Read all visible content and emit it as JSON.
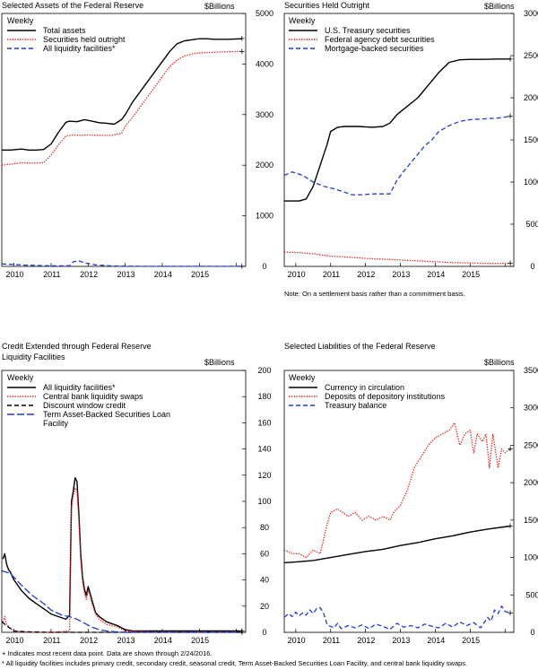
{
  "footnotes": {
    "plus_note": "+ Indicates most recent data point. Data are shown through 2/24/2016.",
    "star_note": "* All liquidity facilities includes primary credit, secondary credit, seasonal credit, Term Asset-Backed Securities Loan Facility, and central bank liquidity swaps."
  },
  "chart_data": [
    {
      "type": "line",
      "title": "Selected Assets of the Federal Reserve",
      "unit_label": "$Billions",
      "legend_title": "Weekly",
      "ylim": [
        0,
        5000
      ],
      "yticks": [
        0,
        1000,
        2000,
        3000,
        4000,
        5000
      ],
      "xlim": [
        2009.67,
        2016.25
      ],
      "xticks": [
        "2010",
        "2011",
        "2012",
        "2013",
        "2014",
        "2015"
      ],
      "series": [
        {
          "name": "Total assets",
          "color": "#000000",
          "style": "solid",
          "x": [
            2009.67,
            2009.9,
            2010.2,
            2010.4,
            2010.6,
            2010.8,
            2011.0,
            2011.2,
            2011.4,
            2011.5,
            2011.7,
            2011.9,
            2012.1,
            2012.3,
            2012.5,
            2012.7,
            2012.9,
            2013.0,
            2013.2,
            2013.4,
            2013.6,
            2013.8,
            2014.0,
            2014.2,
            2014.4,
            2014.6,
            2014.8,
            2015.0,
            2015.2,
            2015.4,
            2015.6,
            2015.8,
            2016.15
          ],
          "y": [
            2300,
            2300,
            2320,
            2300,
            2300,
            2310,
            2420,
            2650,
            2850,
            2870,
            2860,
            2900,
            2870,
            2840,
            2830,
            2810,
            2900,
            3000,
            3250,
            3450,
            3650,
            3850,
            4050,
            4250,
            4400,
            4460,
            4480,
            4500,
            4500,
            4490,
            4490,
            4490,
            4500
          ]
        },
        {
          "name": "Securities held outright",
          "color": "#e8251f",
          "style": "dotted",
          "x": [
            2009.67,
            2009.9,
            2010.2,
            2010.5,
            2010.8,
            2011.0,
            2011.2,
            2011.4,
            2011.6,
            2011.8,
            2012.0,
            2012.3,
            2012.6,
            2012.9,
            2013.0,
            2013.2,
            2013.4,
            2013.6,
            2013.8,
            2014.0,
            2014.2,
            2014.4,
            2014.6,
            2014.8,
            2015.0,
            2015.3,
            2015.6,
            2016.15
          ],
          "y": [
            2000,
            2020,
            2050,
            2040,
            2050,
            2200,
            2400,
            2580,
            2600,
            2590,
            2600,
            2590,
            2590,
            2630,
            2770,
            2950,
            3150,
            3350,
            3550,
            3750,
            3950,
            4080,
            4160,
            4200,
            4220,
            4230,
            4240,
            4250
          ]
        },
        {
          "name": "All liquidity facilities*",
          "color": "#1f3ad6",
          "style": "dashed",
          "x": [
            2009.67,
            2009.9,
            2010.3,
            2010.8,
            2011.2,
            2011.5,
            2011.6,
            2011.75,
            2011.9,
            2012.2,
            2012.6,
            2013.0,
            2014.0,
            2015.0,
            2016.15
          ],
          "y": [
            50,
            40,
            25,
            15,
            10,
            12,
            90,
            110,
            70,
            30,
            10,
            3,
            1,
            1,
            1
          ]
        }
      ]
    },
    {
      "type": "line",
      "title": "Securities Held Outright",
      "unit_label": "$Billions",
      "legend_title": "Weekly",
      "ylim": [
        0,
        3000
      ],
      "yticks": [
        0,
        500,
        1000,
        1500,
        2000,
        2500,
        3000
      ],
      "xlim": [
        2009.67,
        2016.25
      ],
      "xticks": [
        "2010",
        "2011",
        "2012",
        "2013",
        "2014",
        "2015"
      ],
      "note": "Note: On a settlement basis rather than a commitment basis.",
      "series": [
        {
          "name": "U.S. Treasury securities",
          "color": "#000000",
          "style": "solid",
          "x": [
            2009.67,
            2010.1,
            2010.3,
            2010.5,
            2010.7,
            2010.9,
            2011.0,
            2011.2,
            2011.4,
            2011.5,
            2011.8,
            2012.2,
            2012.5,
            2012.7,
            2012.9,
            2013.2,
            2013.5,
            2013.8,
            2014.1,
            2014.4,
            2014.7,
            2015.0,
            2015.4,
            2015.8,
            2016.15
          ],
          "y": [
            775,
            775,
            800,
            950,
            1200,
            1450,
            1600,
            1650,
            1660,
            1660,
            1660,
            1650,
            1660,
            1700,
            1800,
            1900,
            2000,
            2150,
            2300,
            2420,
            2450,
            2455,
            2455,
            2460,
            2460
          ]
        },
        {
          "name": "Federal agency debt securities",
          "color": "#e8251f",
          "style": "dotted",
          "x": [
            2009.67,
            2010.0,
            2010.5,
            2011.0,
            2011.5,
            2012.0,
            2012.5,
            2013.0,
            2013.5,
            2014.0,
            2014.5,
            2015.0,
            2015.5,
            2016.15
          ],
          "y": [
            170,
            165,
            150,
            120,
            110,
            95,
            85,
            75,
            65,
            55,
            45,
            40,
            35,
            35
          ]
        },
        {
          "name": "Mortgage-backed securities",
          "color": "#1f3ad6",
          "style": "dashed",
          "x": [
            2009.67,
            2009.9,
            2010.2,
            2010.5,
            2010.8,
            2011.1,
            2011.4,
            2011.6,
            2011.9,
            2012.2,
            2012.5,
            2012.7,
            2012.9,
            2013.1,
            2013.3,
            2013.5,
            2013.7,
            2013.9,
            2014.1,
            2014.4,
            2014.7,
            2015.0,
            2015.4,
            2015.8,
            2016.15
          ],
          "y": [
            1080,
            1120,
            1080,
            1000,
            950,
            920,
            880,
            850,
            850,
            860,
            860,
            860,
            1020,
            1130,
            1230,
            1330,
            1430,
            1500,
            1600,
            1670,
            1720,
            1740,
            1750,
            1760,
            1780
          ]
        }
      ]
    },
    {
      "type": "line",
      "title": "Credit Extended through Federal Reserve Liquidity Facilities",
      "title_lines": [
        "Credit Extended through Federal Reserve",
        "Liquidity Facilities"
      ],
      "unit_label": "$Billions",
      "legend_title": "Weekly",
      "ylim": [
        0,
        200
      ],
      "yticks": [
        0,
        20,
        40,
        60,
        80,
        100,
        120,
        140,
        160,
        180,
        200
      ],
      "xlim": [
        2009.67,
        2016.25
      ],
      "xticks": [
        "2010",
        "2011",
        "2012",
        "2013",
        "2014",
        "2015"
      ],
      "series": [
        {
          "name": "All liquidity facilities*",
          "color": "#000000",
          "style": "solid",
          "x": [
            2009.7,
            2009.75,
            2009.8,
            2009.85,
            2009.9,
            2010.0,
            2010.2,
            2010.4,
            2010.6,
            2010.8,
            2011.0,
            2011.2,
            2011.4,
            2011.5,
            2011.55,
            2011.6,
            2011.65,
            2011.7,
            2011.75,
            2011.8,
            2011.85,
            2011.9,
            2011.95,
            2012.0,
            2012.05,
            2012.1,
            2012.15,
            2012.2,
            2012.3,
            2012.4,
            2012.5,
            2012.6,
            2012.8,
            2013.0,
            2013.2,
            2014.0,
            2015.0,
            2016.15
          ],
          "y": [
            56,
            60,
            52,
            48,
            46,
            40,
            32,
            26,
            22,
            18,
            14,
            12,
            10,
            13,
            100,
            108,
            118,
            115,
            90,
            60,
            42,
            33,
            28,
            35,
            30,
            25,
            20,
            15,
            12,
            10,
            8,
            7,
            5,
            2,
            1,
            1,
            1,
            1
          ]
        },
        {
          "name": "Central bank liquidity swaps",
          "color": "#e8251f",
          "style": "dotted",
          "x": [
            2009.7,
            2009.75,
            2009.8,
            2009.9,
            2010.0,
            2010.5,
            2011.0,
            2011.5,
            2011.55,
            2011.6,
            2011.65,
            2011.7,
            2011.75,
            2011.8,
            2011.85,
            2011.9,
            2011.95,
            2012.0,
            2012.05,
            2012.1,
            2012.2,
            2012.3,
            2012.5,
            2012.8,
            2013.0,
            2014.0,
            2015.0,
            2016.15
          ],
          "y": [
            8,
            12,
            6,
            3,
            1,
            0,
            0,
            1,
            95,
            105,
            110,
            108,
            85,
            55,
            38,
            30,
            25,
            32,
            28,
            22,
            14,
            10,
            6,
            4,
            1,
            0,
            0,
            0
          ]
        },
        {
          "name": "Discount window credit",
          "color": "#000000",
          "style": "dashed",
          "x": [
            2009.67,
            2009.8,
            2009.9,
            2010.0,
            2010.3,
            2011.0,
            2012.0,
            2013.0,
            2014.0,
            2015.0,
            2016.15
          ],
          "y": [
            8,
            5,
            3,
            1,
            0.5,
            0,
            0,
            0,
            0,
            0,
            0
          ]
        },
        {
          "name": "Term Asset-Backed Securities Loan Facility",
          "legend_lines": [
            "Term Asset-Backed Securities Loan",
            "Facility"
          ],
          "color": "#1f3ad6",
          "style": "longdash",
          "x": [
            2009.67,
            2009.9,
            2010.2,
            2010.5,
            2010.8,
            2011.0,
            2011.3,
            2011.5,
            2011.7,
            2011.9,
            2012.1,
            2012.3,
            2012.5,
            2012.7,
            2012.9,
            2013.0,
            2013.5,
            2014.0,
            2014.5,
            2015.0,
            2016.15
          ],
          "y": [
            47,
            45,
            36,
            28,
            22,
            17,
            13,
            12,
            10,
            7,
            4,
            2,
            1,
            0.5,
            0.2,
            0,
            0,
            0,
            0,
            0,
            0
          ]
        }
      ]
    },
    {
      "type": "line",
      "title": "Selected Liabilities of the Federal Reserve",
      "unit_label": "$Billions",
      "legend_title": "Weekly",
      "ylim": [
        0,
        3500
      ],
      "yticks": [
        0,
        500,
        1000,
        1500,
        2000,
        2500,
        3000,
        3500
      ],
      "xlim": [
        2009.67,
        2016.25
      ],
      "xticks": [
        "2010",
        "2011",
        "2012",
        "2013",
        "2014",
        "2015"
      ],
      "series": [
        {
          "name": "Currency in circulation",
          "color": "#000000",
          "style": "solid",
          "x": [
            2009.67,
            2010.0,
            2010.5,
            2011.0,
            2011.5,
            2012.0,
            2012.5,
            2013.0,
            2013.5,
            2014.0,
            2014.5,
            2015.0,
            2015.5,
            2016.15
          ],
          "y": [
            930,
            940,
            960,
            1000,
            1040,
            1080,
            1110,
            1160,
            1200,
            1250,
            1290,
            1340,
            1380,
            1420
          ]
        },
        {
          "name": "Deposits of depository institutions",
          "color": "#e8251f",
          "style": "dotted",
          "x": [
            2009.67,
            2009.9,
            2010.1,
            2010.3,
            2010.5,
            2010.7,
            2010.9,
            2011.0,
            2011.2,
            2011.35,
            2011.5,
            2011.7,
            2011.9,
            2012.1,
            2012.3,
            2012.5,
            2012.7,
            2012.8,
            2013.0,
            2013.2,
            2013.4,
            2013.6,
            2013.8,
            2014.0,
            2014.2,
            2014.4,
            2014.55,
            2014.7,
            2014.85,
            2015.0,
            2015.1,
            2015.2,
            2015.35,
            2015.45,
            2015.55,
            2015.65,
            2015.8,
            2015.9,
            2016.0,
            2016.15
          ],
          "y": [
            1100,
            1050,
            1050,
            1000,
            1100,
            1050,
            1450,
            1600,
            1650,
            1600,
            1550,
            1600,
            1500,
            1550,
            1500,
            1550,
            1500,
            1600,
            1700,
            1900,
            2200,
            2350,
            2500,
            2600,
            2650,
            2700,
            2800,
            2500,
            2650,
            2700,
            2400,
            2650,
            2550,
            2650,
            2200,
            2650,
            2200,
            2450,
            2400,
            2450
          ]
        },
        {
          "name": "Treasury balance",
          "color": "#1f3ad6",
          "style": "dashed",
          "x": [
            2009.67,
            2009.8,
            2009.9,
            2010.0,
            2010.1,
            2010.2,
            2010.3,
            2010.4,
            2010.5,
            2010.6,
            2010.7,
            2010.8,
            2010.9,
            2011.0,
            2011.1,
            2011.2,
            2011.3,
            2011.5,
            2011.7,
            2011.9,
            2012.1,
            2012.3,
            2012.5,
            2012.7,
            2012.9,
            2013.1,
            2013.3,
            2013.5,
            2013.7,
            2013.9,
            2014.1,
            2014.3,
            2014.5,
            2014.7,
            2014.9,
            2015.1,
            2015.3,
            2015.5,
            2015.6,
            2015.7,
            2015.8,
            2015.9,
            2016.0,
            2016.15
          ],
          "y": [
            200,
            250,
            210,
            270,
            220,
            260,
            230,
            300,
            250,
            320,
            330,
            250,
            100,
            80,
            60,
            120,
            50,
            90,
            60,
            100,
            50,
            110,
            80,
            40,
            120,
            70,
            90,
            60,
            110,
            80,
            60,
            120,
            70,
            140,
            90,
            130,
            60,
            200,
            150,
            300,
            250,
            350,
            280,
            260
          ]
        }
      ]
    }
  ]
}
